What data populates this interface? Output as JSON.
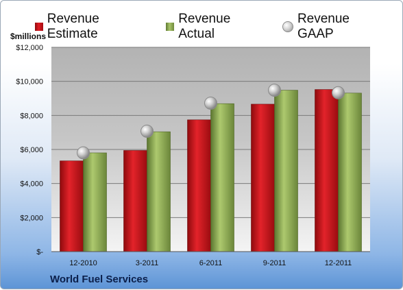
{
  "legend": {
    "estimate": "Revenue Estimate",
    "actual": "Revenue Actual",
    "gaap": "Revenue GAAP"
  },
  "unit_label": "$millions",
  "company": "World Fuel Services",
  "chart_data": {
    "type": "bar",
    "categories": [
      "12-2010",
      "3-2011",
      "6-2011",
      "9-2011",
      "12-2011"
    ],
    "series": [
      {
        "name": "Revenue Estimate",
        "values": [
          5330,
          5940,
          7740,
          8660,
          9520
        ],
        "color": "#cc1a20"
      },
      {
        "name": "Revenue Actual",
        "values": [
          5800,
          7040,
          8690,
          9480,
          9310
        ],
        "color": "#8fae52"
      },
      {
        "name": "Revenue GAAP",
        "values": [
          5800,
          7070,
          8720,
          9480,
          9330
        ],
        "color": "#c8c8c8",
        "marker": "circle"
      }
    ],
    "y_ticks": [
      {
        "value": 0,
        "label": "$-"
      },
      {
        "value": 2000,
        "label": "$2,000"
      },
      {
        "value": 4000,
        "label": "$4,000"
      },
      {
        "value": 6000,
        "label": "$6,000"
      },
      {
        "value": 8000,
        "label": "$8,000"
      },
      {
        "value": 10000,
        "label": "$10,000"
      },
      {
        "value": 12000,
        "label": "$12,000"
      }
    ],
    "ylim": [
      0,
      12000
    ],
    "grid": true,
    "legend_position": "top"
  }
}
